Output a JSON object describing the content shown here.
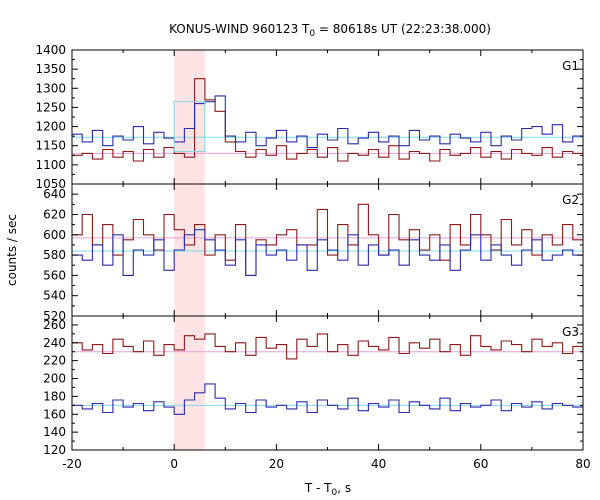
{
  "title": {
    "prefix": "KONUS-WIND 960123 T",
    "sub": "0",
    "suffix": " = 80618s UT (22:23:38.000)"
  },
  "xlabel": {
    "main": "T - T",
    "sub": "0",
    "suffix": ", s"
  },
  "ylabel": "counts / sec",
  "colors": {
    "series_high": "#8b1a1a",
    "series_low": "#2b2ba8",
    "bg_high": "#e0a0d8",
    "bg_low": "#7ed8e8",
    "highlight": "#fde3e3",
    "axis": "#000000"
  },
  "chart_data": {
    "type": "line",
    "step": true,
    "xlim": [
      -20,
      80
    ],
    "xticks": [
      -20,
      0,
      20,
      40,
      60,
      80
    ],
    "bin_width": 2,
    "bin_start": -20,
    "highlight_interval": [
      0,
      6
    ],
    "panels": [
      {
        "label": "G1",
        "ylim": [
          1050,
          1400
        ],
        "yticks": [
          1050,
          1100,
          1150,
          1200,
          1250,
          1300,
          1350,
          1400
        ],
        "background_levels": {
          "high_series": 1130,
          "low_series": 1172
        },
        "sum_box": {
          "x": [
            0,
            6
          ],
          "y": [
            1135,
            1265
          ]
        },
        "series": [
          {
            "role": "high",
            "values": [
              1125,
              1130,
              1115,
              1140,
              1120,
              1135,
              1110,
              1140,
              1120,
              1145,
              1130,
              1120,
              1325,
              1270,
              1240,
              1160,
              1135,
              1120,
              1140,
              1125,
              1150,
              1115,
              1130,
              1140,
              1120,
              1145,
              1110,
              1130,
              1125,
              1140,
              1120,
              1150,
              1115,
              1135,
              1130,
              1110,
              1140,
              1125,
              1130,
              1145,
              1120,
              1135,
              1115,
              1140,
              1130,
              1125,
              1145,
              1120,
              1135,
              1130
            ]
          },
          {
            "role": "low",
            "values": [
              1180,
              1160,
              1190,
              1150,
              1175,
              1165,
              1200,
              1155,
              1185,
              1170,
              1160,
              1195,
              1260,
              1265,
              1280,
              1175,
              1160,
              1185,
              1150,
              1170,
              1190,
              1160,
              1175,
              1145,
              1180,
              1165,
              1195,
              1155,
              1170,
              1185,
              1160,
              1175,
              1150,
              1190,
              1165,
              1175,
              1155,
              1180,
              1170,
              1160,
              1185,
              1150,
              1175,
              1165,
              1195,
              1200,
              1180,
              1205,
              1160,
              1175
            ]
          }
        ]
      },
      {
        "label": "G2",
        "ylim": [
          520,
          650
        ],
        "yticks": [
          520,
          540,
          560,
          580,
          600,
          620,
          640
        ],
        "background_levels": {
          "high_series": 597,
          "low_series": 584
        },
        "series": [
          {
            "role": "high",
            "values": [
              600,
              620,
              590,
              610,
              580,
              595,
              615,
              600,
              585,
              620,
              605,
              590,
              610,
              580,
              600,
              575,
              610,
              560,
              595,
              590,
              600,
              605,
              590,
              590,
              625,
              580,
              610,
              590,
              630,
              600,
              580,
              620,
              595,
              605,
              585,
              600,
              575,
              610,
              590,
              620,
              600,
              585,
              615,
              590,
              605,
              580,
              600,
              590,
              610,
              595
            ]
          },
          {
            "role": "low",
            "values": [
              580,
              575,
              590,
              570,
              600,
              560,
              585,
              580,
              595,
              565,
              585,
              600,
              605,
              595,
              585,
              570,
              595,
              560,
              590,
              580,
              585,
              575,
              590,
              565,
              595,
              585,
              575,
              600,
              570,
              590,
              580,
              585,
              570,
              595,
              580,
              575,
              590,
              565,
              585,
              600,
              575,
              590,
              580,
              570,
              585,
              595,
              575,
              580,
              585,
              580
            ]
          }
        ]
      },
      {
        "label": "G3",
        "ylim": [
          120,
          270
        ],
        "yticks": [
          120,
          140,
          160,
          180,
          200,
          220,
          240,
          260
        ],
        "background_levels": {
          "high_series": 230,
          "low_series": 170
        },
        "series": [
          {
            "role": "high",
            "values": [
              240,
              232,
              238,
              228,
              244,
              236,
              230,
              242,
              226,
              238,
              232,
              248,
              244,
              250,
              236,
              230,
              240,
              226,
              246,
              234,
              238,
              222,
              244,
              236,
              250,
              230,
              238,
              226,
              242,
              236,
              232,
              246,
              228,
              240,
              234,
              244,
              230,
              238,
              226,
              248,
              236,
              232,
              242,
              238,
              230,
              244,
              236,
              240,
              228,
              236
            ]
          },
          {
            "role": "low",
            "values": [
              170,
              166,
              172,
              162,
              176,
              168,
              172,
              164,
              174,
              168,
              160,
              176,
              184,
              194,
              178,
              166,
              172,
              162,
              176,
              168,
              170,
              166,
              174,
              162,
              176,
              170,
              166,
              178,
              164,
              172,
              168,
              176,
              162,
              174,
              170,
              166,
              178,
              164,
              172,
              168,
              170,
              176,
              164,
              172,
              168,
              174,
              166,
              172,
              170,
              168
            ]
          }
        ]
      }
    ]
  }
}
